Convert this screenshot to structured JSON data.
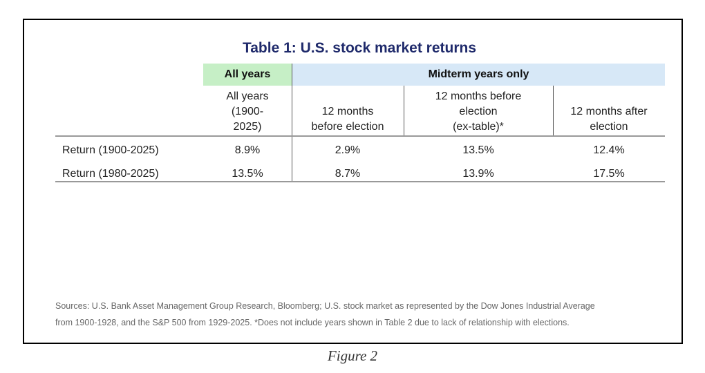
{
  "title": "Table 1: U.S. stock market returns",
  "group_headers": {
    "all": "All years",
    "midterm": "Midterm years only"
  },
  "columns": [
    {
      "lines": [
        "All years",
        "(1900-",
        "2025)"
      ]
    },
    {
      "lines": [
        "12 months",
        "before election"
      ]
    },
    {
      "lines": [
        "12 months before",
        "election",
        "(ex-table)*"
      ]
    },
    {
      "lines": [
        "12 months after",
        "election"
      ]
    }
  ],
  "rows": [
    {
      "label": "Return (1900-2025)",
      "values": [
        "8.9%",
        "2.9%",
        "13.5%",
        "12.4%"
      ]
    },
    {
      "label": "Return (1980-2025)",
      "values": [
        "13.5%",
        "8.7%",
        "13.9%",
        "17.5%"
      ]
    }
  ],
  "footnote": [
    "Sources: U.S. Bank Asset Management Group Research, Bloomberg; U.S. stock market as represented by the Dow Jones Industrial Average",
    "from 1900-1928, and the S&P 500 from 1929-2025. *Does not include years shown in Table 2 due to lack of relationship with elections."
  ],
  "caption": "Figure 2",
  "colors": {
    "title": "#1f2a6b",
    "all_years_header": "#c6efc6",
    "midterm_header": "#d7e8f7"
  }
}
